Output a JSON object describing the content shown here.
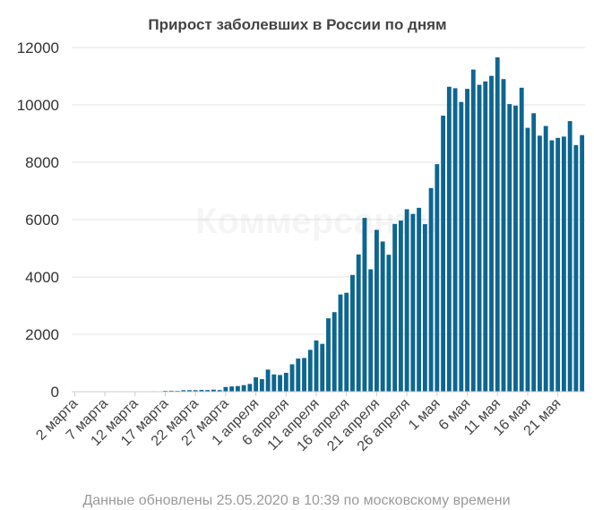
{
  "chart_data": {
    "type": "bar",
    "title": "Прирост заболевших в России по дням",
    "footer": "Данные обновлены 25.05.2020 в 10:39 по московскому времени",
    "watermark": "Коммерсантъ",
    "color": "#0d6690",
    "ylim": [
      0,
      12000
    ],
    "yticks": [
      0,
      2000,
      4000,
      6000,
      8000,
      10000,
      12000
    ],
    "grid": true,
    "xtick_labels": [
      {
        "label": "2 марта",
        "index": 0
      },
      {
        "label": "7 марта",
        "index": 5
      },
      {
        "label": "12 марта",
        "index": 10
      },
      {
        "label": "17 марта",
        "index": 15
      },
      {
        "label": "22 марта",
        "index": 20
      },
      {
        "label": "27 марта",
        "index": 25
      },
      {
        "label": "1 апреля",
        "index": 30
      },
      {
        "label": "6 апреля",
        "index": 35
      },
      {
        "label": "11 апреля",
        "index": 40
      },
      {
        "label": "16 апреля",
        "index": 45
      },
      {
        "label": "21 апреля",
        "index": 50
      },
      {
        "label": "26 апреля",
        "index": 55
      },
      {
        "label": "1 мая",
        "index": 60
      },
      {
        "label": "6 мая",
        "index": 65
      },
      {
        "label": "11 мая",
        "index": 70
      },
      {
        "label": "16 мая",
        "index": 75
      },
      {
        "label": "21 мая",
        "index": 80
      }
    ],
    "values": [
      2,
      0,
      1,
      0,
      1,
      3,
      4,
      0,
      3,
      3,
      6,
      8,
      6,
      17,
      14,
      30,
      34,
      30,
      52,
      54,
      53,
      61,
      57,
      71,
      57,
      163,
      182,
      196,
      228,
      270,
      500,
      440,
      771,
      601,
      582,
      658,
      954,
      1154,
      1175,
      1459,
      1786,
      1667,
      2558,
      2774,
      3388,
      3448,
      4070,
      4785,
      6060,
      4268,
      5642,
      5236,
      4774,
      5849,
      5966,
      6361,
      6198,
      6411,
      5841,
      7099,
      7933,
      9623,
      10633,
      10581,
      10102,
      10559,
      11231,
      10699,
      10817,
      11012,
      11656,
      10899,
      10028,
      9974,
      10598,
      9200,
      9709,
      8926,
      9263,
      8764,
      8849,
      8894,
      9434,
      8599,
      8946
    ]
  }
}
